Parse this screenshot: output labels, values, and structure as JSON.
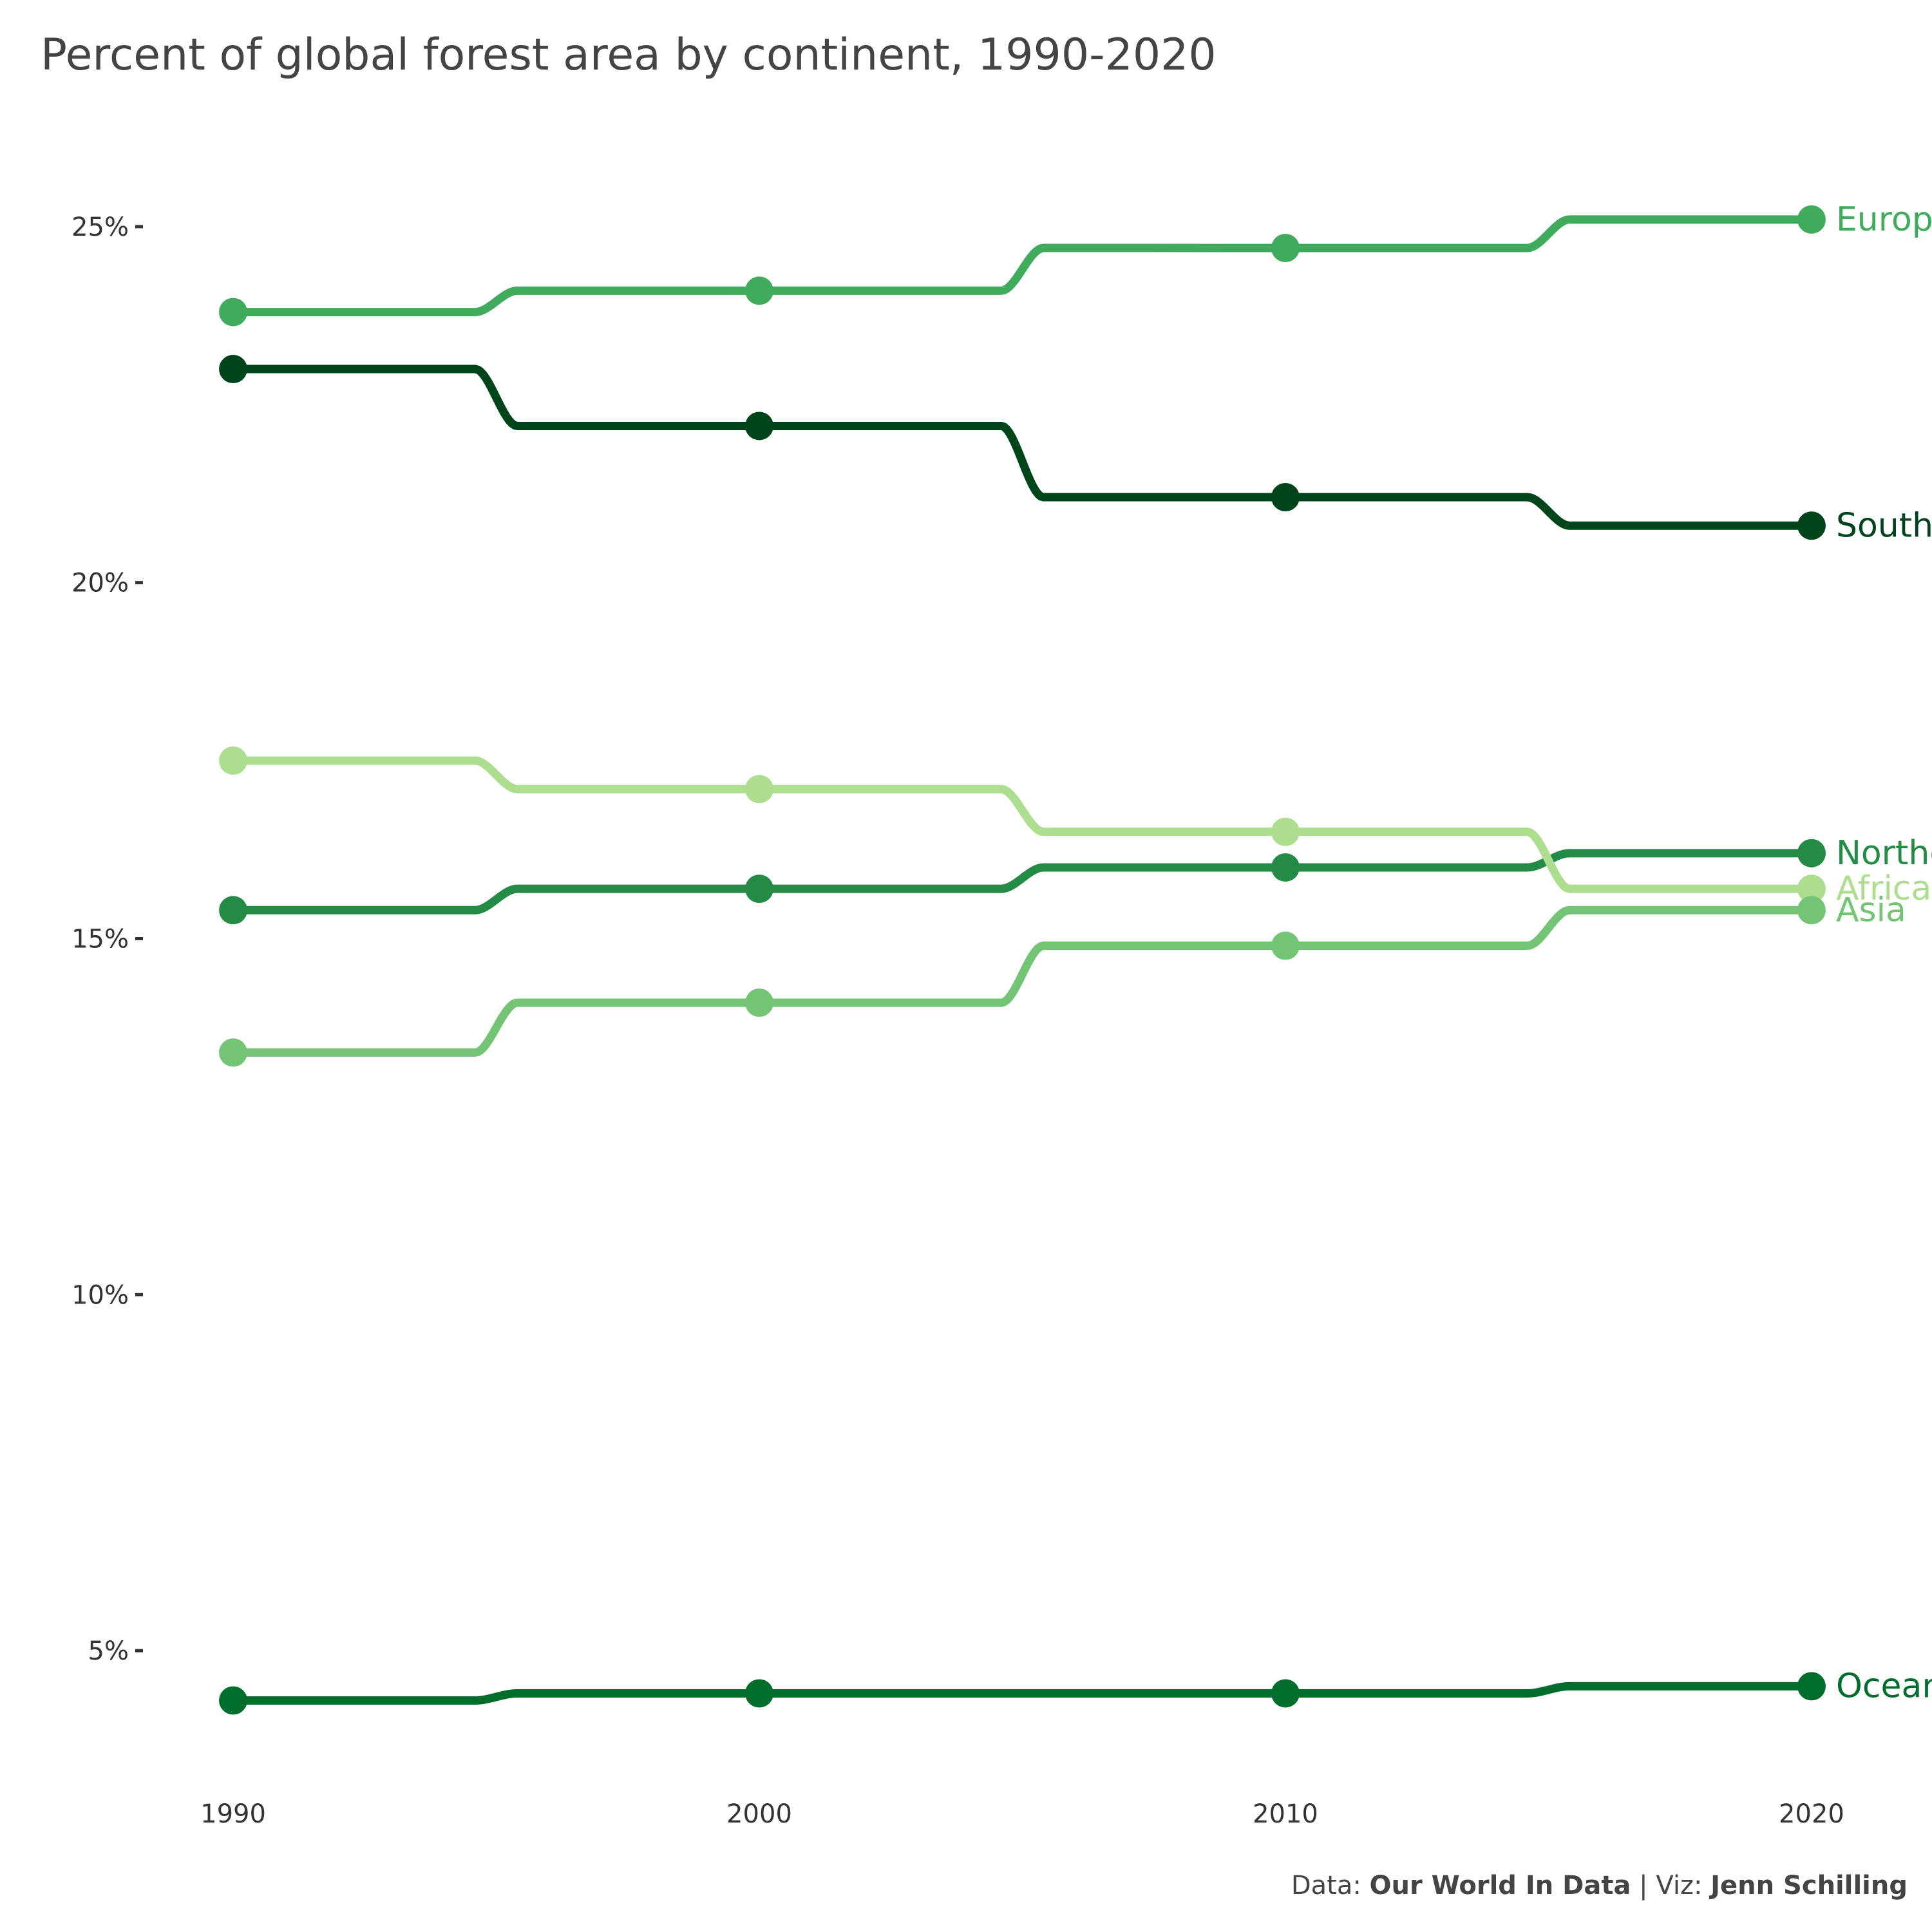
{
  "chart_data": {
    "type": "line",
    "title": "Percent of global forest area by continent, 1990-2020",
    "xlabel": "",
    "ylabel": "",
    "x": [
      1990,
      2000,
      2010,
      2020
    ],
    "x_ticks": [
      "1990",
      "2000",
      "2010",
      "2020"
    ],
    "y_ticks": [
      "5%",
      "10%",
      "15%",
      "20%",
      "25%"
    ],
    "y_tick_values": [
      5,
      10,
      15,
      20,
      25
    ],
    "ylim": [
      3.4,
      26.6
    ],
    "xlim": [
      1988.2,
      2021.8
    ],
    "grid": false,
    "legend": "direct labels at line ends",
    "series": [
      {
        "name": "Europe",
        "values": [
          23.8,
          24.1,
          24.7,
          25.1
        ],
        "color": "#41ab5d"
      },
      {
        "name": "South America",
        "values": [
          23.0,
          22.2,
          21.2,
          20.8
        ],
        "color": "#00441b"
      },
      {
        "name": "Northern America",
        "values": [
          15.4,
          15.7,
          16.0,
          16.2
        ],
        "color": "#238b45"
      },
      {
        "name": "Africa",
        "values": [
          17.5,
          17.1,
          16.5,
          15.7
        ],
        "color": "#addd8e"
      },
      {
        "name": "Asia",
        "values": [
          13.4,
          14.1,
          14.9,
          15.4
        ],
        "color": "#74c476"
      },
      {
        "name": "Oceania",
        "values": [
          4.3,
          4.4,
          4.4,
          4.5
        ],
        "color": "#006d2c"
      }
    ]
  },
  "caption": {
    "data_prefix": "Data: ",
    "data_source": "Our World In Data",
    "separator": " | Viz: ",
    "author": "Jenn Schilling"
  }
}
